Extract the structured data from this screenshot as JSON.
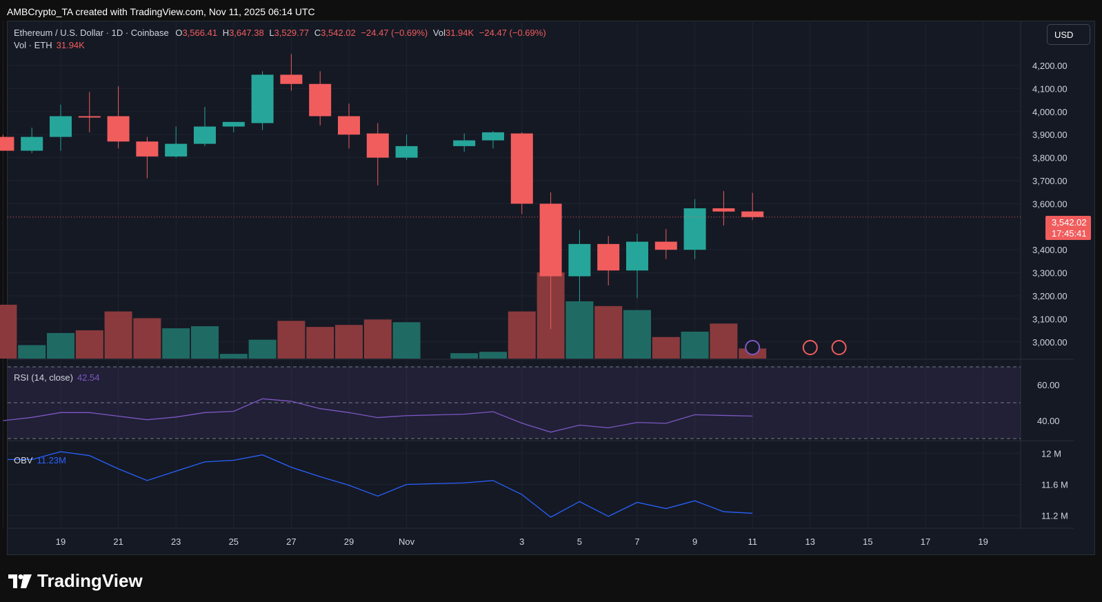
{
  "header": {
    "attribution": "AMBCrypto_TA created with TradingView.com, Nov 11, 2025 06:14 UTC"
  },
  "legend": {
    "symbol": "Ethereum / U.S. Dollar · 1D · Coinbase",
    "o_label": "O",
    "o_value": "3,566.41",
    "h_label": "H",
    "h_value": "3,647.38",
    "l_label": "L",
    "l_value": "3,529.77",
    "c_label": "C",
    "c_value": "3,542.02",
    "change": "−24.47 (−0.69%)",
    "vol_label": "Vol",
    "vol_value": "31.94K",
    "vol_change": "−24.47 (−0.69%)",
    "vol_line_label": "Vol · ETH",
    "vol_line_value": "31.94K"
  },
  "currency_button": "USD",
  "last_price": {
    "price": "3,542.02",
    "countdown": "17:45:41"
  },
  "rsi": {
    "label": "RSI (14, close)",
    "value": "42.54"
  },
  "obv": {
    "label": "OBV",
    "value": "11.23M"
  },
  "brand": "TradingView",
  "colors": {
    "up": "#26a69a",
    "down": "#f15d5d",
    "up_vol": "#1f6b64",
    "down_vol": "#8a3a3c",
    "rsi": "#7e57c2",
    "obv": "#2962ff",
    "background": "#151924"
  },
  "chart_data": [
    {
      "type": "candlestick",
      "title": "Ethereum / U.S. Dollar · 1D · Coinbase",
      "ylim": [
        2950,
        4300
      ],
      "y_ticks": [
        "4,200.00",
        "4,100.00",
        "4,000.00",
        "3,900.00",
        "3,800.00",
        "3,700.00",
        "3,600.00",
        "3,400.00",
        "3,300.00",
        "3,200.00",
        "3,100.00",
        "3,000.00"
      ],
      "y_tick_values": [
        4200,
        4100,
        4000,
        3900,
        3800,
        3700,
        3600,
        3400,
        3300,
        3200,
        3100,
        3000
      ],
      "x_ticks": [
        "17",
        "19",
        "21",
        "23",
        "25",
        "27",
        "29",
        "Nov",
        "3",
        "5",
        "7",
        "9",
        "11",
        "13",
        "15",
        "17",
        "19"
      ],
      "x_tick_days": [
        -15,
        -13,
        -11,
        -9,
        -7,
        -5,
        -3,
        -1,
        3,
        5,
        7,
        9,
        11,
        13,
        15,
        17,
        19
      ],
      "candles": [
        {
          "date": "Oct 17",
          "day": -15,
          "o": 3890,
          "h": 3900,
          "l": 3830,
          "c": 3830
        },
        {
          "date": "Oct 18",
          "day": -14,
          "o": 3830,
          "h": 3930,
          "l": 3820,
          "c": 3890
        },
        {
          "date": "Oct 19",
          "day": -13,
          "o": 3890,
          "h": 4030,
          "l": 3830,
          "c": 3980
        },
        {
          "date": "Oct 20",
          "day": -12,
          "o": 3980,
          "h": 4085,
          "l": 3910,
          "c": 3975
        },
        {
          "date": "Oct 21",
          "day": -11,
          "o": 3980,
          "h": 4110,
          "l": 3840,
          "c": 3870
        },
        {
          "date": "Oct 22",
          "day": -10,
          "o": 3870,
          "h": 3890,
          "l": 3710,
          "c": 3805
        },
        {
          "date": "Oct 23",
          "day": -9,
          "o": 3805,
          "h": 3935,
          "l": 3800,
          "c": 3860
        },
        {
          "date": "Oct 24",
          "day": -8,
          "o": 3860,
          "h": 4020,
          "l": 3850,
          "c": 3935
        },
        {
          "date": "Oct 25",
          "day": -7,
          "o": 3935,
          "h": 3955,
          "l": 3910,
          "c": 3955
        },
        {
          "date": "Oct 26",
          "day": -6,
          "o": 3950,
          "h": 4175,
          "l": 3920,
          "c": 4160
        },
        {
          "date": "Oct 27",
          "day": -5,
          "o": 4160,
          "h": 4250,
          "l": 4090,
          "c": 4120
        },
        {
          "date": "Oct 28",
          "day": -4,
          "o": 4120,
          "h": 4175,
          "l": 3940,
          "c": 3980
        },
        {
          "date": "Oct 29",
          "day": -3,
          "o": 3980,
          "h": 4035,
          "l": 3840,
          "c": 3900
        },
        {
          "date": "Oct 30",
          "day": -2,
          "o": 3905,
          "h": 3950,
          "l": 3680,
          "c": 3800
        },
        {
          "date": "Oct 31",
          "day": -1,
          "o": 3800,
          "h": 3900,
          "l": 3790,
          "c": 3850
        },
        {
          "date": "Nov 1",
          "day": 1,
          "o": 3850,
          "h": 3905,
          "l": 3825,
          "c": 3875
        },
        {
          "date": "Nov 2",
          "day": 2,
          "o": 3875,
          "h": 3915,
          "l": 3840,
          "c": 3910
        },
        {
          "date": "Nov 3",
          "day": 3,
          "o": 3905,
          "h": 3910,
          "l": 3555,
          "c": 3600
        },
        {
          "date": "Nov 4",
          "day": 4,
          "o": 3600,
          "h": 3650,
          "l": 3055,
          "c": 3285
        },
        {
          "date": "Nov 5",
          "day": 5,
          "o": 3285,
          "h": 3485,
          "l": 3175,
          "c": 3425
        },
        {
          "date": "Nov 6",
          "day": 6,
          "o": 3425,
          "h": 3460,
          "l": 3245,
          "c": 3310
        },
        {
          "date": "Nov 7",
          "day": 7,
          "o": 3310,
          "h": 3470,
          "l": 3190,
          "c": 3435
        },
        {
          "date": "Nov 8",
          "day": 8,
          "o": 3435,
          "h": 3490,
          "l": 3360,
          "c": 3400
        },
        {
          "date": "Nov 9",
          "day": 9,
          "o": 3400,
          "h": 3620,
          "l": 3360,
          "c": 3580
        },
        {
          "date": "Nov 10",
          "day": 10,
          "o": 3580,
          "h": 3655,
          "l": 3505,
          "c": 3566
        },
        {
          "date": "Nov 11",
          "day": 11,
          "o": 3566.41,
          "h": 3647.38,
          "l": 3529.77,
          "c": 3542.02
        }
      ]
    },
    {
      "type": "bar",
      "title": "Vol · ETH",
      "values": [
        80,
        20,
        38,
        42,
        70,
        60,
        45,
        48,
        7,
        28,
        56,
        47,
        50,
        58,
        54,
        8,
        10,
        70,
        128,
        85,
        78,
        72,
        32,
        40,
        52,
        15
      ]
    },
    {
      "type": "line",
      "title": "RSI (14, close)",
      "ylim": [
        30,
        70
      ],
      "y_ticks": [
        "60.00",
        "40.00"
      ],
      "y_tick_values": [
        60,
        40
      ],
      "bands": [
        70,
        50,
        30
      ],
      "values": [
        40,
        41.8,
        44.5,
        44.5,
        42.5,
        40.5,
        42,
        44.5,
        45.2,
        52.2,
        50.8,
        46.7,
        44.5,
        41.7,
        42.8,
        43.6,
        45,
        38.6,
        33.6,
        37.5,
        36,
        39,
        38.5,
        43.3,
        42.9,
        42.54
      ]
    },
    {
      "type": "line",
      "title": "OBV",
      "ylim": [
        11.1,
        12.1
      ],
      "y_ticks": [
        "12 M",
        "11.6 M",
        "11.2 M"
      ],
      "y_tick_values": [
        12,
        11.6,
        11.2
      ],
      "values": [
        11.92,
        12.02,
        11.97,
        11.8,
        11.65,
        11.77,
        11.89,
        11.91,
        11.98,
        11.82,
        11.7,
        11.59,
        11.45,
        11.6,
        11.62,
        11.65,
        11.47,
        11.18,
        11.38,
        11.19,
        11.37,
        11.29,
        11.39,
        11.25,
        11.23
      ]
    }
  ]
}
